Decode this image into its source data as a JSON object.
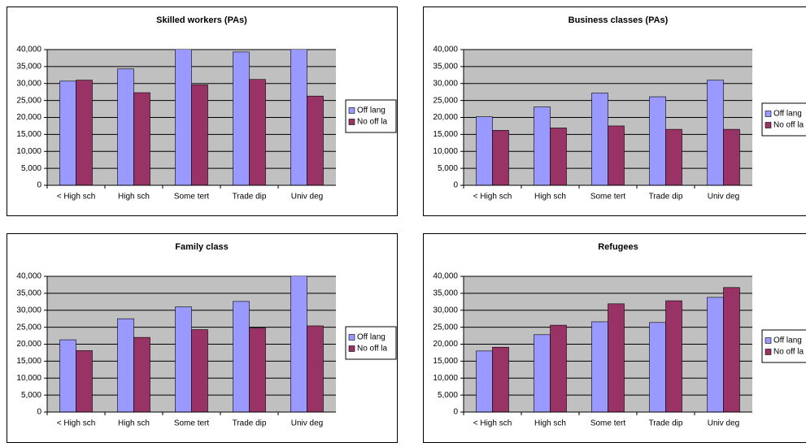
{
  "chart_data": [
    {
      "type": "bar",
      "title": "Skilled workers (PAs)",
      "categories": [
        "< High sch",
        "High sch",
        "Some tert",
        "Trade dip",
        "Univ deg"
      ],
      "series": [
        {
          "name": "Off lang",
          "color": "#9999ff",
          "values": [
            30700,
            34300,
            40400,
            39300,
            40500
          ]
        },
        {
          "name": "No off la",
          "color": "#993366",
          "values": [
            31000,
            27300,
            29600,
            31200,
            26300
          ]
        }
      ],
      "ylim": [
        0,
        40000
      ],
      "yticks": [
        0,
        {
          "value": 5000,
          "label": "5,000"
        },
        {
          "value": 10000,
          "label": "10,000"
        },
        {
          "value": 15000,
          "label": "15,000"
        },
        {
          "value": 20000,
          "label": "20,000"
        },
        {
          "value": 25000,
          "label": "25,000"
        },
        {
          "value": 30000,
          "label": "30,000"
        },
        {
          "value": 35000,
          "label": "35,000"
        },
        {
          "value": 40000,
          "label": "40,000"
        }
      ],
      "grid": true,
      "legend": "right"
    },
    {
      "type": "bar",
      "title": "Business classes (PAs)",
      "categories": [
        "< High sch",
        "High sch",
        "Some tert",
        "Trade dip",
        "Univ deg"
      ],
      "series": [
        {
          "name": "Off lang",
          "color": "#9999ff",
          "values": [
            20200,
            23100,
            27200,
            26100,
            31000
          ]
        },
        {
          "name": "No off la",
          "color": "#993366",
          "values": [
            16200,
            16900,
            17500,
            16500,
            16500
          ]
        }
      ],
      "ylim": [
        0,
        40000
      ],
      "yticks": [
        0,
        {
          "value": 5000,
          "label": "5,000"
        },
        {
          "value": 10000,
          "label": "10,000"
        },
        {
          "value": 15000,
          "label": "15,000"
        },
        {
          "value": 20000,
          "label": "20,000"
        },
        {
          "value": 25000,
          "label": "25,000"
        },
        {
          "value": 30000,
          "label": "30,000"
        },
        {
          "value": 35000,
          "label": "35,000"
        },
        {
          "value": 40000,
          "label": "40,000"
        }
      ],
      "grid": true,
      "legend": "right"
    },
    {
      "type": "bar",
      "title": "Family class",
      "categories": [
        "< High sch",
        "High sch",
        "Some tert",
        "Trade dip",
        "Univ deg"
      ],
      "series": [
        {
          "name": "Off lang",
          "color": "#9999ff",
          "values": [
            21300,
            27500,
            31000,
            32600,
            40500
          ]
        },
        {
          "name": "No off la",
          "color": "#993366",
          "values": [
            18100,
            22000,
            24300,
            24800,
            25400
          ]
        }
      ],
      "ylim": [
        0,
        40000
      ],
      "yticks": [
        0,
        {
          "value": 5000,
          "label": "5,000"
        },
        {
          "value": 10000,
          "label": "10,000"
        },
        {
          "value": 15000,
          "label": "15,000"
        },
        {
          "value": 20000,
          "label": "20,000"
        },
        {
          "value": 25000,
          "label": "25,000"
        },
        {
          "value": 30000,
          "label": "30,000"
        },
        {
          "value": 35000,
          "label": "35,000"
        },
        {
          "value": 40000,
          "label": "40,000"
        }
      ],
      "grid": true,
      "legend": "right"
    },
    {
      "type": "bar",
      "title": "Refugees",
      "categories": [
        "< High sch",
        "High sch",
        "Some tert",
        "Trade dip",
        "Univ deg"
      ],
      "series": [
        {
          "name": "Off lang",
          "color": "#9999ff",
          "values": [
            18000,
            22800,
            26600,
            26400,
            33800
          ]
        },
        {
          "name": "No off la",
          "color": "#993366",
          "values": [
            19100,
            25600,
            31900,
            32800,
            36700
          ]
        }
      ],
      "ylim": [
        0,
        40000
      ],
      "yticks": [
        0,
        {
          "value": 5000,
          "label": "5,000"
        },
        {
          "value": 10000,
          "label": "10,000"
        },
        {
          "value": 15000,
          "label": "15,000"
        },
        {
          "value": 20000,
          "label": "20,000"
        },
        {
          "value": 25000,
          "label": "25,000"
        },
        {
          "value": 30000,
          "label": "30,000"
        },
        {
          "value": 35000,
          "label": "35,000"
        },
        {
          "value": 40000,
          "label": "40,000"
        }
      ],
      "grid": true,
      "legend": "right"
    }
  ]
}
